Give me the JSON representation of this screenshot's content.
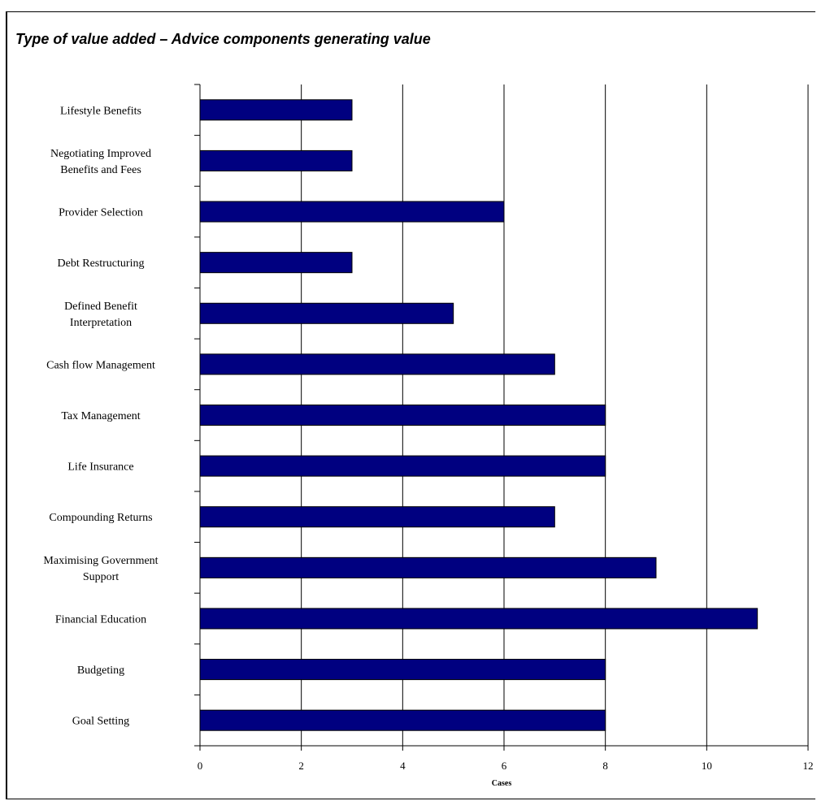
{
  "chart_data": {
    "type": "bar",
    "orientation": "horizontal",
    "title": "Type of value added – Advice components generating value",
    "xlabel": "Cases",
    "ylabel": "",
    "xlim": [
      0,
      12
    ],
    "xticks": [
      0,
      2,
      4,
      6,
      8,
      10,
      12
    ],
    "grid": true,
    "legend": "none",
    "bar_color": "#000080",
    "categories": [
      [
        "Lifestyle Benefits"
      ],
      [
        "Negotiating Improved",
        "Benefits and Fees"
      ],
      [
        "Provider Selection"
      ],
      [
        "Debt Restructuring"
      ],
      [
        "Defined Benefit",
        "Interpretation"
      ],
      [
        "Cash flow Management"
      ],
      [
        "Tax Management"
      ],
      [
        "Life Insurance"
      ],
      [
        "Compounding Returns"
      ],
      [
        "Maximising Government",
        "Support"
      ],
      [
        "Financial Education"
      ],
      [
        "Budgeting"
      ],
      [
        "Goal Setting"
      ]
    ],
    "values": [
      3,
      3,
      6,
      3,
      5,
      7,
      8,
      8,
      7,
      9,
      11,
      8,
      8
    ]
  }
}
